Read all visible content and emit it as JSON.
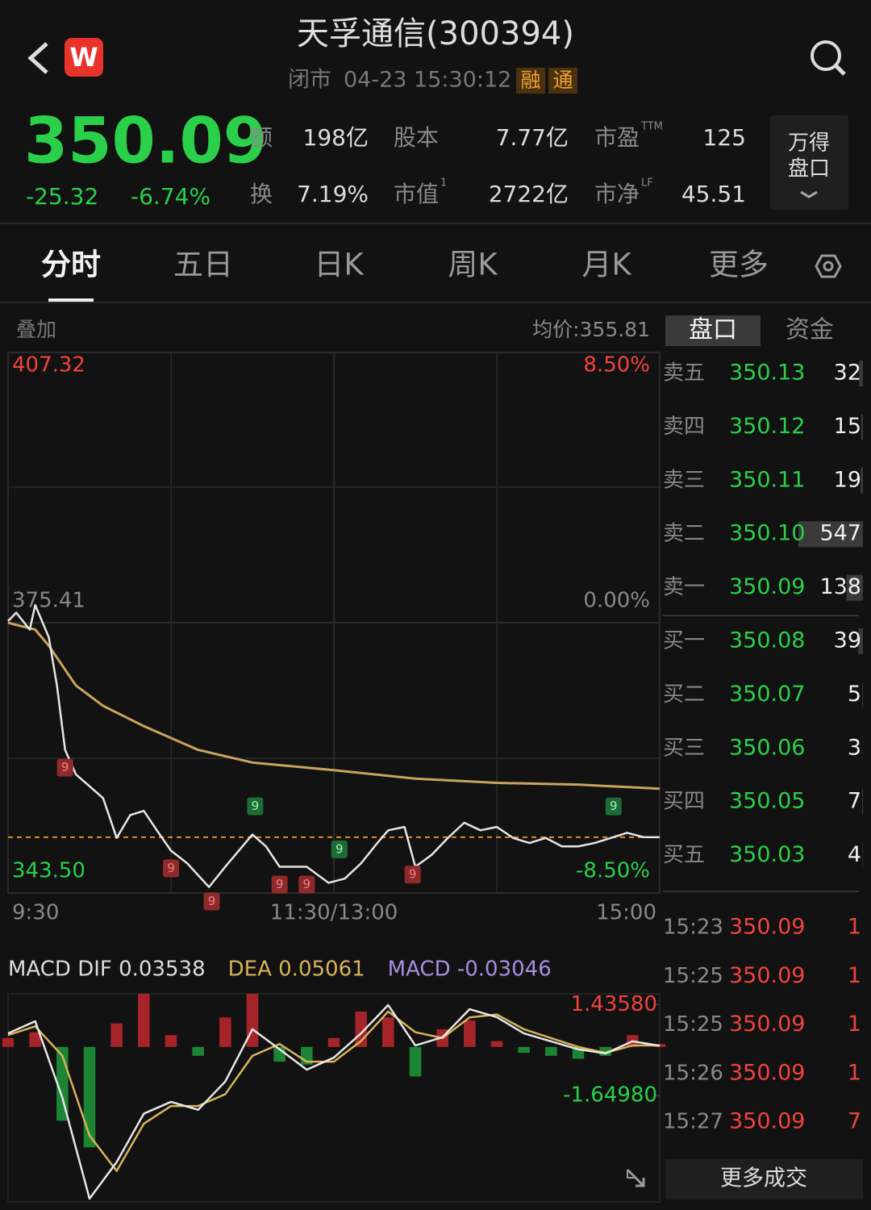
{
  "header": {
    "title": "天孚通信(300394)",
    "logo": "W",
    "status": "闭市",
    "time": "04-23 15:30:12",
    "tags": [
      "融",
      "通"
    ]
  },
  "quote": {
    "price": "350.09",
    "change": "-25.32",
    "change_pct": "-6.74%",
    "stats": [
      [
        {
          "label": "额",
          "value": "198亿"
        },
        {
          "label": "股本",
          "value": "7.77亿"
        },
        {
          "label": "市盈",
          "sup": "TTM",
          "value": "125"
        }
      ],
      [
        {
          "label": "换",
          "value": "7.19%"
        },
        {
          "label": "市值",
          "sup": "1",
          "value": "2722亿"
        },
        {
          "label": "市净",
          "sup": "LF",
          "value": "45.51"
        }
      ]
    ],
    "button": [
      "万得",
      "盘口"
    ]
  },
  "tabs": {
    "items": [
      "分时",
      "五日",
      "日K",
      "周K",
      "月K",
      "更多"
    ],
    "active": 0
  },
  "chart_toolbar": {
    "overlay": "叠加",
    "avg_price": "均价:355.81"
  },
  "chart_data": [
    {
      "type": "line",
      "xlim": [
        0,
        240
      ],
      "xticks": [
        {
          "value": 0,
          "label": "9:30"
        },
        {
          "value": 120,
          "label": "11:30/13:00"
        },
        {
          "value": 240,
          "label": "15:00"
        }
      ],
      "ylim": [
        343.5,
        407.32
      ],
      "yticks": [
        {
          "value": 343.5,
          "label": "343.50"
        },
        375.41,
        407.32
      ],
      "y2lim": [
        -8.5,
        8.5
      ],
      "y2ticks": [
        {
          "value": -8.5,
          "label": "-8.50%"
        },
        {
          "value": 0,
          "label": "0.00%"
        },
        {
          "value": 8.5,
          "label": "8.50%"
        }
      ],
      "grid": true,
      "series": [
        {
          "color": "#e6e6e6",
          "x": [
            0,
            3,
            8,
            10,
            15,
            18,
            21,
            25,
            30,
            35,
            40,
            45,
            50,
            55,
            60,
            66,
            74,
            80,
            90,
            95,
            100,
            110,
            118,
            124,
            130,
            136,
            140,
            146,
            150,
            156,
            162,
            168,
            174,
            180,
            186,
            192,
            198,
            204,
            210,
            216,
            222,
            228,
            234,
            240
          ],
          "values": [
            375.6,
            376.6,
            374.6,
            377.5,
            373.7,
            368.0,
            360.4,
            357.5,
            356.1,
            354.7,
            350.0,
            352.7,
            353.2,
            350.8,
            348.5,
            347.0,
            344.2,
            346.6,
            350.4,
            349.0,
            346.6,
            346.6,
            344.7,
            345.2,
            347.0,
            349.4,
            350.9,
            351.3,
            346.6,
            348.0,
            350.0,
            351.8,
            350.9,
            351.3,
            350.0,
            349.4,
            350.0,
            349.0,
            349.0,
            349.4,
            350.0,
            350.6,
            350.1,
            350.09
          ]
        },
        {
          "color": "#c9a45c",
          "x": [
            0,
            10,
            15,
            25,
            35,
            50,
            70,
            90,
            120,
            150,
            180,
            210,
            240
          ],
          "values": [
            375.4,
            374.6,
            372.7,
            368.0,
            365.6,
            363.2,
            360.4,
            358.9,
            358.0,
            357.0,
            356.5,
            356.3,
            355.81
          ]
        }
      ],
      "last_price_line": {
        "color": "#e08a2a"
      },
      "signals": [
        {
          "x": 21,
          "label": "9",
          "side": "sell"
        },
        {
          "x": 60,
          "label": "9",
          "side": "sell"
        },
        {
          "x": 75,
          "label": "9",
          "side": "sell"
        },
        {
          "x": 100,
          "label": "9",
          "side": "sell"
        },
        {
          "x": 110,
          "label": "9",
          "side": "sell"
        },
        {
          "x": 149,
          "label": "9",
          "side": "sell"
        },
        {
          "x": 91,
          "label": "9",
          "side": "buy"
        },
        {
          "x": 122,
          "label": "9",
          "side": "buy"
        },
        {
          "x": 223,
          "label": "9",
          "side": "buy"
        }
      ]
    },
    {
      "type": "macd",
      "legend": [
        {
          "text": "MACD DIF 0.03538",
          "color": "#dddddd"
        },
        {
          "text": "DEA 0.05061",
          "color": "#d8b25a"
        },
        {
          "text": "MACD -0.03046",
          "color": "#a98ee0"
        }
      ],
      "xlim": [
        0,
        240
      ],
      "ylim": [
        -5.25,
        1.8
      ],
      "yticks": [
        {
          "value": 1.4358,
          "label": "1.43580"
        },
        {
          "value": -1.6498,
          "label": "-1.64980"
        }
      ],
      "x": [
        0,
        10,
        20,
        30,
        40,
        50,
        60,
        70,
        80,
        90,
        100,
        110,
        120,
        130,
        140,
        150,
        160,
        170,
        180,
        190,
        200,
        210,
        220,
        230,
        240
      ],
      "series": [
        {
          "color": "#e6e6e6",
          "values": [
            0.46,
            0.87,
            -1.72,
            -5.14,
            -3.9,
            -2.26,
            -1.86,
            -2.13,
            -1.17,
            0.6,
            -0.08,
            -0.77,
            -0.36,
            0.46,
            1.42,
            0.05,
            0.33,
            1.28,
            1.01,
            0.46,
            0.19,
            -0.08,
            -0.22,
            0.19,
            0.04
          ]
        },
        {
          "color": "#d8b25a",
          "values": [
            0.4,
            0.7,
            -0.3,
            -3.0,
            -4.2,
            -2.6,
            -2.0,
            -2.0,
            -1.6,
            -0.3,
            0.1,
            -0.5,
            -0.5,
            0.2,
            1.2,
            0.5,
            0.3,
            1.0,
            1.1,
            0.6,
            0.3,
            0.0,
            -0.2,
            0.05,
            0.05
          ]
        }
      ],
      "histogram": {
        "values": [
          0.3,
          0.5,
          -2.5,
          -3.4,
          0.8,
          1.8,
          0.4,
          -0.3,
          1.0,
          1.8,
          -0.5,
          -0.6,
          0.3,
          1.2,
          1.0,
          -1.0,
          0.6,
          0.9,
          0.2,
          -0.2,
          -0.3,
          -0.4,
          -0.3,
          0.4,
          0.1
        ],
        "up_color": "#c0282e",
        "down_color": "#1f9a3a"
      }
    }
  ],
  "order_book": {
    "tabs": [
      "盘口",
      "资金"
    ],
    "active": 0,
    "rows": [
      {
        "label": "卖五",
        "price": "350.13",
        "volume": 32
      },
      {
        "label": "卖四",
        "price": "350.12",
        "volume": 15
      },
      {
        "label": "卖三",
        "price": "350.11",
        "volume": 19
      },
      {
        "label": "卖二",
        "price": "350.10",
        "volume": 547
      },
      {
        "label": "卖一",
        "price": "350.09",
        "volume": 138
      },
      {
        "label": "买一",
        "price": "350.08",
        "volume": 39
      },
      {
        "label": "买二",
        "price": "350.07",
        "volume": 5
      },
      {
        "label": "买三",
        "price": "350.06",
        "volume": 3
      },
      {
        "label": "买四",
        "price": "350.05",
        "volume": 7
      },
      {
        "label": "买五",
        "price": "350.03",
        "volume": 4
      }
    ]
  },
  "trades": {
    "rows": [
      {
        "time": "15:23",
        "price": "350.09",
        "volume": 1
      },
      {
        "time": "15:25",
        "price": "350.09",
        "volume": 1
      },
      {
        "time": "15:25",
        "price": "350.09",
        "volume": 1
      },
      {
        "time": "15:26",
        "price": "350.09",
        "volume": 1
      },
      {
        "time": "15:27",
        "price": "350.09",
        "volume": 7
      }
    ],
    "more": "更多成交"
  }
}
